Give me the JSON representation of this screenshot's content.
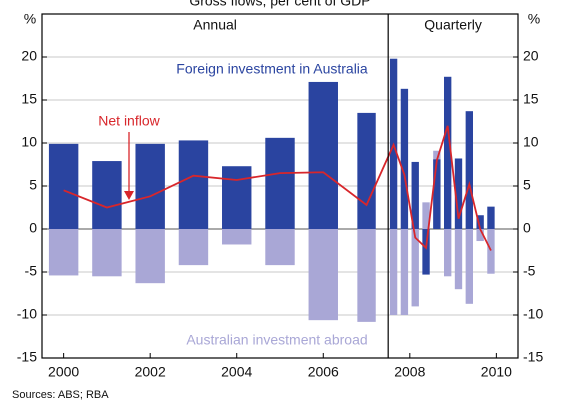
{
  "chart_data": {
    "type": "bar",
    "title": "Gross flows, per cent of GDP",
    "y_unit": "%",
    "source": "Sources: ABS; RBA",
    "panels": [
      {
        "label": "Annual",
        "xlim": [
          1999.5,
          2007.5
        ]
      },
      {
        "label": "Quarterly",
        "xlim": [
          2007.5,
          2010.5
        ]
      }
    ],
    "x": [
      2000,
      2001,
      2002,
      2003,
      2004,
      2005,
      2006,
      2007,
      2007.625,
      2007.875,
      2008.125,
      2008.375,
      2008.625,
      2008.875,
      2009.125,
      2009.375,
      2009.625,
      2009.875
    ],
    "series": [
      {
        "name": "Australian investment abroad",
        "type": "bar",
        "color": "#a9a7d6",
        "values": [
          -5.4,
          -5.5,
          -6.3,
          -4.2,
          -1.8,
          -4.2,
          -10.6,
          -10.8,
          -10,
          -10,
          -9,
          3.1,
          9.1,
          -5.5,
          -7,
          -8.7,
          -1.4,
          -5.2
        ]
      },
      {
        "name": "Foreign investment in Australia",
        "type": "bar",
        "color": "#2a44a0",
        "values": [
          9.9,
          7.9,
          9.9,
          10.3,
          7.3,
          10.6,
          17.1,
          13.5,
          19.8,
          16.3,
          7.8,
          -5.3,
          8.1,
          17.7,
          8.2,
          13.7,
          1.6,
          2.6
        ]
      },
      {
        "name": "Net inflow",
        "type": "line",
        "color": "#d8262b",
        "values": [
          4.5,
          2.5,
          3.8,
          6.2,
          5.7,
          6.5,
          6.6,
          2.8,
          9.8,
          6.3,
          -1,
          -2.2,
          8,
          12,
          1.2,
          5.2,
          0,
          -2.5
        ]
      }
    ],
    "xlim": [
      1999.5,
      2010.5
    ],
    "xticks": [
      2000,
      2002,
      2004,
      2006,
      2008,
      2010
    ],
    "ylim": [
      -15,
      25
    ],
    "yticks": [
      -15,
      -10,
      -5,
      0,
      5,
      10,
      15,
      20
    ],
    "grid": true
  }
}
